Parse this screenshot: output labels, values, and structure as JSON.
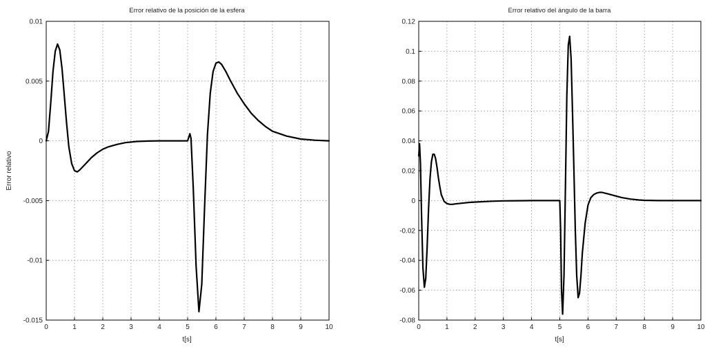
{
  "chart_data": [
    {
      "type": "line",
      "title": "Error relativo de la posición de la esfera",
      "xlabel": "t[s]",
      "ylabel": "Error relativo",
      "xlim": [
        0,
        10
      ],
      "ylim": [
        -0.015,
        0.01
      ],
      "grid": true,
      "x_ticks": [
        "0",
        "1",
        "2",
        "3",
        "4",
        "5",
        "6",
        "7",
        "8",
        "9",
        "10"
      ],
      "y_ticks": [
        "0.01",
        "0.005",
        "0",
        "-0.005",
        "-0.01",
        "-0.015"
      ],
      "series": [
        {
          "x": [
            0,
            0.08,
            0.16,
            0.24,
            0.32,
            0.4,
            0.48,
            0.56,
            0.64,
            0.72,
            0.8,
            0.9,
            1.0,
            1.1,
            1.2,
            1.4,
            1.6,
            1.8,
            2.0,
            2.2,
            2.5,
            2.8,
            3.2,
            3.6,
            4.0,
            4.5,
            5.0,
            5.08,
            5.12,
            5.2,
            5.3,
            5.4,
            5.5,
            5.6,
            5.7,
            5.8,
            5.9,
            6.0,
            6.1,
            6.2,
            6.35,
            6.5,
            6.75,
            7.0,
            7.25,
            7.5,
            7.75,
            8.0,
            8.5,
            9.0,
            9.5,
            10.0
          ],
          "y": [
            0,
            0.0008,
            0.0032,
            0.0058,
            0.0075,
            0.0081,
            0.0076,
            0.006,
            0.0038,
            0.0015,
            -0.0005,
            -0.0019,
            -0.0025,
            -0.0026,
            -0.0024,
            -0.0019,
            -0.0014,
            -0.001,
            -0.0007,
            -0.0005,
            -0.0003,
            -0.00015,
            -5e-05,
            -2e-05,
            0,
            0,
            0,
            0.0006,
            0.0002,
            -0.004,
            -0.0105,
            -0.0143,
            -0.012,
            -0.0055,
            0.0005,
            0.004,
            0.0058,
            0.0065,
            0.0066,
            0.0064,
            0.0058,
            0.0051,
            0.004,
            0.0031,
            0.0023,
            0.0017,
            0.0012,
            0.0008,
            0.0004,
            0.00015,
            5e-05,
            0
          ]
        }
      ]
    },
    {
      "type": "line",
      "title": "Error relativo del ángulo de la barra",
      "xlabel": "t[s]",
      "ylabel": "",
      "xlim": [
        0,
        10
      ],
      "ylim": [
        -0.08,
        0.12
      ],
      "grid": true,
      "x_ticks": [
        "0",
        "1",
        "2",
        "3",
        "4",
        "5",
        "6",
        "7",
        "8",
        "9",
        "10"
      ],
      "y_ticks": [
        "0.12",
        "0.1",
        "0.08",
        "0.06",
        "0.04",
        "0.02",
        "0",
        "-0.02",
        "-0.04",
        "-0.06",
        "-0.08"
      ],
      "series": [
        {
          "x": [
            0,
            0.03,
            0.06,
            0.1,
            0.15,
            0.2,
            0.25,
            0.3,
            0.35,
            0.4,
            0.45,
            0.5,
            0.55,
            0.6,
            0.65,
            0.7,
            0.75,
            0.8,
            0.9,
            1.0,
            1.1,
            1.2,
            1.3,
            1.5,
            1.8,
            2.2,
            2.6,
            3.0,
            3.5,
            4.0,
            4.5,
            5.0,
            5.03,
            5.06,
            5.1,
            5.15,
            5.2,
            5.25,
            5.3,
            5.35,
            5.4,
            5.45,
            5.5,
            5.55,
            5.6,
            5.65,
            5.7,
            5.75,
            5.8,
            5.9,
            6.0,
            6.1,
            6.2,
            6.3,
            6.4,
            6.5,
            6.6,
            6.7,
            6.8,
            7.0,
            7.2,
            7.5,
            7.8,
            8.0,
            8.5,
            9.0,
            9.5,
            10.0
          ],
          "y": [
            0.03,
            0.038,
            0.025,
            -0.01,
            -0.045,
            -0.058,
            -0.052,
            -0.03,
            -0.005,
            0.015,
            0.026,
            0.031,
            0.031,
            0.028,
            0.022,
            0.015,
            0.009,
            0.004,
            -0.0005,
            -0.002,
            -0.0025,
            -0.0025,
            -0.0022,
            -0.0018,
            -0.0012,
            -0.0008,
            -0.0004,
            -0.0002,
            -0.0001,
            0,
            0,
            0,
            -0.02,
            -0.06,
            -0.076,
            -0.05,
            0.01,
            0.07,
            0.104,
            0.11,
            0.095,
            0.06,
            0.02,
            -0.02,
            -0.05,
            -0.065,
            -0.062,
            -0.05,
            -0.035,
            -0.015,
            -0.003,
            0.002,
            0.004,
            0.005,
            0.0055,
            0.0055,
            0.005,
            0.0045,
            0.004,
            0.003,
            0.002,
            0.001,
            0.0004,
            0.0002,
            0,
            0,
            0,
            0
          ]
        }
      ]
    }
  ]
}
